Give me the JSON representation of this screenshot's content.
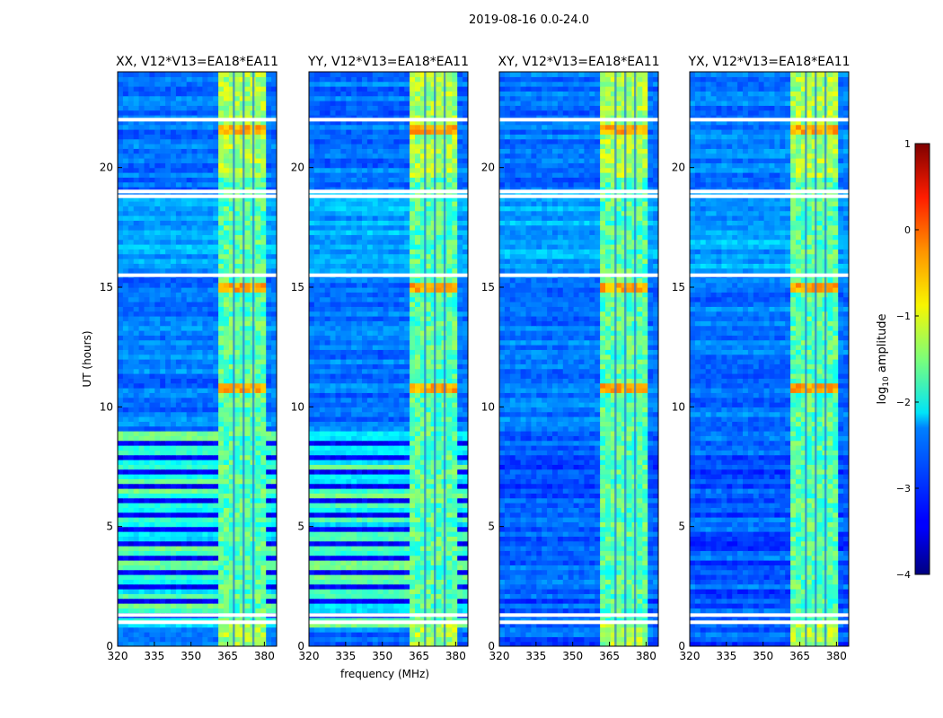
{
  "figure_title": "2019-08-16 0.0-24.0",
  "colorbar": {
    "label": "log10 amplitude",
    "label_main": "log",
    "label_sub": "10",
    "label_rest": " amplitude",
    "range": [
      -4,
      1
    ],
    "ticks": [
      "1",
      "0",
      "−1",
      "−2",
      "−3",
      "−4"
    ],
    "tick_values": [
      1,
      0,
      -1,
      -2,
      -3,
      -4
    ],
    "colormap": "jet"
  },
  "chart_data": [
    {
      "type": "heatmap",
      "title": "XX, V12*V13=EA18*EA11",
      "xlabel": "",
      "ylabel": "UT (hours)",
      "xlim": [
        320,
        385
      ],
      "ylim": [
        0,
        24
      ],
      "xticks": [
        "320",
        "335",
        "350",
        "365",
        "380"
      ],
      "xtick_values": [
        320,
        335,
        350,
        365,
        380
      ],
      "yticks": [
        "0",
        "5",
        "10",
        "15",
        "20"
      ],
      "ytick_values": [
        0,
        5,
        10,
        15,
        20
      ],
      "rfi_band_mhz": [
        361,
        380
      ],
      "flagged_hours": [
        1.0,
        1.3,
        15.5,
        18.8,
        19.0,
        22.0
      ]
    },
    {
      "type": "heatmap",
      "title": "YY, V12*V13=EA18*EA11",
      "xlabel": "frequency (MHz)",
      "ylabel": "",
      "xlim": [
        320,
        385
      ],
      "ylim": [
        0,
        24
      ],
      "xticks": [
        "320",
        "335",
        "350",
        "365",
        "380"
      ],
      "xtick_values": [
        320,
        335,
        350,
        365,
        380
      ],
      "yticks": [
        "0",
        "5",
        "10",
        "15",
        "20"
      ],
      "ytick_values": [
        0,
        5,
        10,
        15,
        20
      ],
      "rfi_band_mhz": [
        361,
        380
      ],
      "flagged_hours": [
        1.0,
        1.3,
        15.5,
        18.8,
        19.0,
        22.0
      ]
    },
    {
      "type": "heatmap",
      "title": "XY, V12*V13=EA18*EA11",
      "xlabel": "",
      "ylabel": "",
      "xlim": [
        320,
        385
      ],
      "ylim": [
        0,
        24
      ],
      "xticks": [
        "320",
        "335",
        "350",
        "365",
        "380"
      ],
      "xtick_values": [
        320,
        335,
        350,
        365,
        380
      ],
      "yticks": [
        "0",
        "5",
        "10",
        "15",
        "20"
      ],
      "ytick_values": [
        0,
        5,
        10,
        15,
        20
      ],
      "rfi_band_mhz": [
        361,
        380
      ],
      "flagged_hours": [
        1.0,
        1.3,
        15.5,
        18.8,
        19.0,
        22.0
      ]
    },
    {
      "type": "heatmap",
      "title": "YX, V12*V13=EA18*EA11",
      "xlabel": "",
      "ylabel": "",
      "xlim": [
        320,
        385
      ],
      "ylim": [
        0,
        24
      ],
      "xticks": [
        "320",
        "335",
        "350",
        "365",
        "380"
      ],
      "xtick_values": [
        320,
        335,
        350,
        365,
        380
      ],
      "yticks": [
        "0",
        "5",
        "10",
        "15",
        "20"
      ],
      "ytick_values": [
        0,
        5,
        10,
        15,
        20
      ],
      "rfi_band_mhz": [
        361,
        380
      ],
      "flagged_hours": [
        1.0,
        1.3,
        15.5,
        18.8,
        19.0,
        22.0
      ]
    }
  ]
}
